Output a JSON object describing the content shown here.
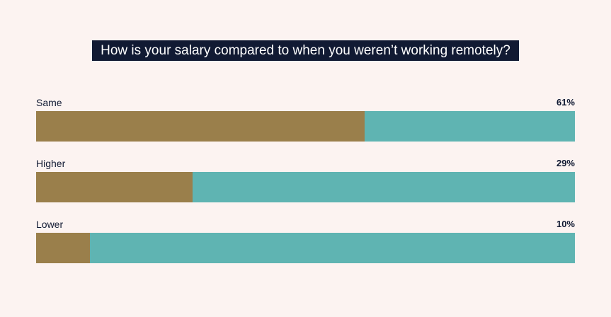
{
  "chart_data": {
    "type": "bar",
    "orientation": "horizontal",
    "stacked": true,
    "title": "How is your salary compared to when you weren’t working remotely?",
    "categories": [
      "Same",
      "Higher",
      "Lower"
    ],
    "values": [
      61,
      29,
      10
    ],
    "value_labels": [
      "61%",
      "29%",
      "10%"
    ],
    "unit": "%",
    "xlim": [
      0,
      100
    ],
    "grid": false,
    "legend": "none",
    "colors": {
      "value": "#9a7f4b",
      "remainder": "#5fb4b2",
      "title_bg": "#111a33",
      "title_text": "#ffffff",
      "text": "#111a33",
      "background": "#fcf3f1"
    }
  }
}
